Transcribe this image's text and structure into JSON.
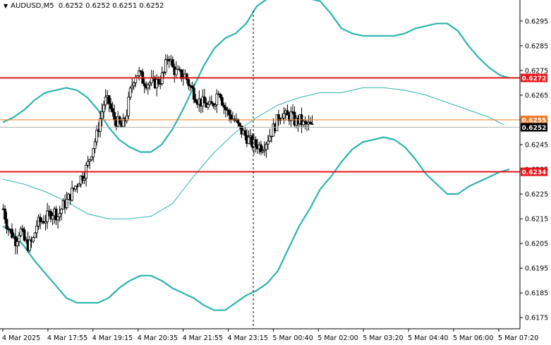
{
  "header": {
    "symbol_timeframe": "AUDUSD,M5",
    "quote": "0.6252 0.6252 0.6251 0.6252"
  },
  "chart_data": {
    "type": "candlestick",
    "symbol": "AUDUSD",
    "timeframe": "M5",
    "ylim": [
      0.61705,
      0.63035
    ],
    "y_ticks": [
      "0.6295",
      "0.6285",
      "0.6275",
      "0.6265",
      "0.6255",
      "0.6245",
      "0.6235",
      "0.6225",
      "0.6215",
      "0.6205",
      "0.6195",
      "0.6185",
      "0.6175"
    ],
    "x_ticks": [
      "4 Mar 2025",
      "4 Mar 17:55",
      "4 Mar 19:15",
      "4 Mar 20:35",
      "4 Mar 21:55",
      "4 Mar 23:15",
      "5 Mar 00:40",
      "5 Mar 02:00",
      "5 Mar 03:20",
      "5 Mar 04:40",
      "5 Mar 06:00",
      "5 Mar 07:20"
    ],
    "bars_count": 176,
    "close_path": [
      [
        0,
        0.6219
      ],
      [
        6,
        0.6212
      ],
      [
        12,
        0.6209
      ],
      [
        18,
        0.6206
      ],
      [
        24,
        0.6211
      ],
      [
        30,
        0.6206
      ],
      [
        36,
        0.6204
      ],
      [
        42,
        0.6206
      ],
      [
        48,
        0.6213
      ],
      [
        54,
        0.6214
      ],
      [
        60,
        0.6215
      ],
      [
        66,
        0.6217
      ],
      [
        72,
        0.6218
      ],
      [
        78,
        0.6216
      ],
      [
        84,
        0.622
      ],
      [
        90,
        0.6222
      ],
      [
        96,
        0.6225
      ],
      [
        102,
        0.6228
      ],
      [
        108,
        0.6231
      ],
      [
        114,
        0.6233
      ],
      [
        120,
        0.6237
      ],
      [
        126,
        0.6243
      ],
      [
        132,
        0.6248
      ],
      [
        138,
        0.6256
      ],
      [
        144,
        0.6263
      ],
      [
        150,
        0.6262
      ],
      [
        156,
        0.6256
      ],
      [
        162,
        0.6254
      ],
      [
        168,
        0.6252
      ],
      [
        174,
        0.6256
      ],
      [
        180,
        0.6266
      ],
      [
        186,
        0.6273
      ],
      [
        192,
        0.6274
      ],
      [
        198,
        0.6271
      ],
      [
        204,
        0.627
      ],
      [
        210,
        0.627
      ],
      [
        216,
        0.627
      ],
      [
        222,
        0.6271
      ],
      [
        228,
        0.6274
      ],
      [
        234,
        0.6282
      ],
      [
        240,
        0.6276
      ],
      [
        246,
        0.6274
      ],
      [
        252,
        0.6273
      ],
      [
        258,
        0.6273
      ],
      [
        264,
        0.6269
      ],
      [
        270,
        0.6266
      ],
      [
        276,
        0.6263
      ],
      [
        282,
        0.6262
      ],
      [
        288,
        0.6261
      ],
      [
        294,
        0.626
      ],
      [
        300,
        0.6263
      ],
      [
        306,
        0.6268
      ],
      [
        312,
        0.6261
      ],
      [
        318,
        0.6258
      ],
      [
        324,
        0.6256
      ],
      [
        330,
        0.6254
      ],
      [
        336,
        0.6251
      ],
      [
        342,
        0.6249
      ],
      [
        348,
        0.6247
      ],
      [
        354,
        0.6245
      ],
      [
        360,
        0.6245
      ],
      [
        366,
        0.6244
      ],
      [
        372,
        0.6246
      ],
      [
        378,
        0.6249
      ],
      [
        384,
        0.6252
      ],
      [
        390,
        0.6256
      ],
      [
        396,
        0.6258
      ],
      [
        402,
        0.6256
      ],
      [
        408,
        0.6257
      ],
      [
        414,
        0.6254
      ],
      [
        420,
        0.6255
      ],
      [
        426,
        0.6253
      ],
      [
        432,
        0.6253
      ],
      [
        438,
        0.6252
      ]
    ],
    "moving_average": [
      [
        0,
        0.6231
      ],
      [
        30,
        0.6229
      ],
      [
        60,
        0.6226
      ],
      [
        90,
        0.6222
      ],
      [
        120,
        0.6217
      ],
      [
        150,
        0.6215
      ],
      [
        180,
        0.6215
      ],
      [
        210,
        0.6216
      ],
      [
        240,
        0.6221
      ],
      [
        270,
        0.6232
      ],
      [
        300,
        0.6242
      ],
      [
        330,
        0.625
      ],
      [
        360,
        0.6256
      ],
      [
        390,
        0.6261
      ],
      [
        420,
        0.6264
      ],
      [
        450,
        0.6266
      ],
      [
        480,
        0.6266
      ],
      [
        510,
        0.6268
      ],
      [
        540,
        0.6268
      ],
      [
        570,
        0.6267
      ],
      [
        600,
        0.6265
      ],
      [
        630,
        0.6262
      ],
      [
        660,
        0.6259
      ],
      [
        690,
        0.6256
      ],
      [
        710,
        0.6253
      ]
    ],
    "bollinger_upper": [
      [
        0,
        0.6254
      ],
      [
        15,
        0.6256
      ],
      [
        30,
        0.6259
      ],
      [
        45,
        0.6263
      ],
      [
        60,
        0.6266
      ],
      [
        75,
        0.6267
      ],
      [
        90,
        0.6268
      ],
      [
        105,
        0.6267
      ],
      [
        120,
        0.6264
      ],
      [
        135,
        0.6259
      ],
      [
        150,
        0.6252
      ],
      [
        165,
        0.6247
      ],
      [
        180,
        0.6244
      ],
      [
        195,
        0.6242
      ],
      [
        210,
        0.6242
      ],
      [
        225,
        0.6245
      ],
      [
        240,
        0.6251
      ],
      [
        255,
        0.6259
      ],
      [
        270,
        0.6268
      ],
      [
        285,
        0.6277
      ],
      [
        300,
        0.6284
      ],
      [
        315,
        0.6288
      ],
      [
        330,
        0.629
      ],
      [
        345,
        0.6294
      ],
      [
        360,
        0.6301
      ],
      [
        375,
        0.6304
      ],
      [
        390,
        0.6305
      ],
      [
        405,
        0.6305
      ],
      [
        420,
        0.6304
      ],
      [
        435,
        0.6304
      ],
      [
        450,
        0.6303
      ],
      [
        465,
        0.6298
      ],
      [
        480,
        0.6292
      ],
      [
        495,
        0.629
      ],
      [
        510,
        0.6289
      ],
      [
        525,
        0.6289
      ],
      [
        540,
        0.6289
      ],
      [
        555,
        0.6289
      ],
      [
        570,
        0.629
      ],
      [
        585,
        0.6292
      ],
      [
        600,
        0.6293
      ],
      [
        615,
        0.6294
      ],
      [
        630,
        0.6294
      ],
      [
        645,
        0.6291
      ],
      [
        660,
        0.6285
      ],
      [
        675,
        0.628
      ],
      [
        690,
        0.6276
      ],
      [
        705,
        0.6273
      ],
      [
        718,
        0.6272
      ]
    ],
    "bollinger_lower": [
      [
        0,
        0.6212
      ],
      [
        15,
        0.6209
      ],
      [
        30,
        0.6204
      ],
      [
        45,
        0.6198
      ],
      [
        60,
        0.6193
      ],
      [
        75,
        0.6188
      ],
      [
        90,
        0.6183
      ],
      [
        105,
        0.6181
      ],
      [
        120,
        0.6181
      ],
      [
        135,
        0.6181
      ],
      [
        150,
        0.6183
      ],
      [
        165,
        0.6187
      ],
      [
        180,
        0.619
      ],
      [
        195,
        0.6192
      ],
      [
        210,
        0.6192
      ],
      [
        225,
        0.619
      ],
      [
        240,
        0.6187
      ],
      [
        255,
        0.6185
      ],
      [
        270,
        0.6183
      ],
      [
        285,
        0.618
      ],
      [
        300,
        0.6178
      ],
      [
        315,
        0.6178
      ],
      [
        330,
        0.6181
      ],
      [
        345,
        0.6184
      ],
      [
        360,
        0.6186
      ],
      [
        375,
        0.6189
      ],
      [
        390,
        0.6194
      ],
      [
        405,
        0.6203
      ],
      [
        420,
        0.6212
      ],
      [
        435,
        0.6219
      ],
      [
        450,
        0.6227
      ],
      [
        465,
        0.6232
      ],
      [
        480,
        0.6238
      ],
      [
        495,
        0.6243
      ],
      [
        510,
        0.6246
      ],
      [
        525,
        0.6247
      ],
      [
        540,
        0.6248
      ],
      [
        555,
        0.6247
      ],
      [
        570,
        0.6244
      ],
      [
        585,
        0.6239
      ],
      [
        600,
        0.6233
      ],
      [
        615,
        0.6229
      ],
      [
        630,
        0.6225
      ],
      [
        645,
        0.6225
      ],
      [
        660,
        0.6228
      ],
      [
        675,
        0.623
      ],
      [
        690,
        0.6232
      ],
      [
        705,
        0.6234
      ],
      [
        718,
        0.6235
      ]
    ],
    "horizontal_lines": [
      {
        "label": "0.6272",
        "value": 0.6272,
        "color": "#e8141a"
      },
      {
        "label": "0.6255",
        "value": 0.6255,
        "color": "#f07a2a"
      },
      {
        "label": "0.6234",
        "value": 0.6234,
        "color": "#e8141a"
      }
    ],
    "current_price": {
      "label": "0.6252",
      "value": 0.6252
    }
  },
  "colors": {
    "candle": "#000000",
    "bollinger": "#2cb5ad",
    "moving_average": "#2cb5ad",
    "bid_line": "#b0b0b0",
    "grid_separator": "#000000",
    "current_price_tag": "#000000"
  }
}
